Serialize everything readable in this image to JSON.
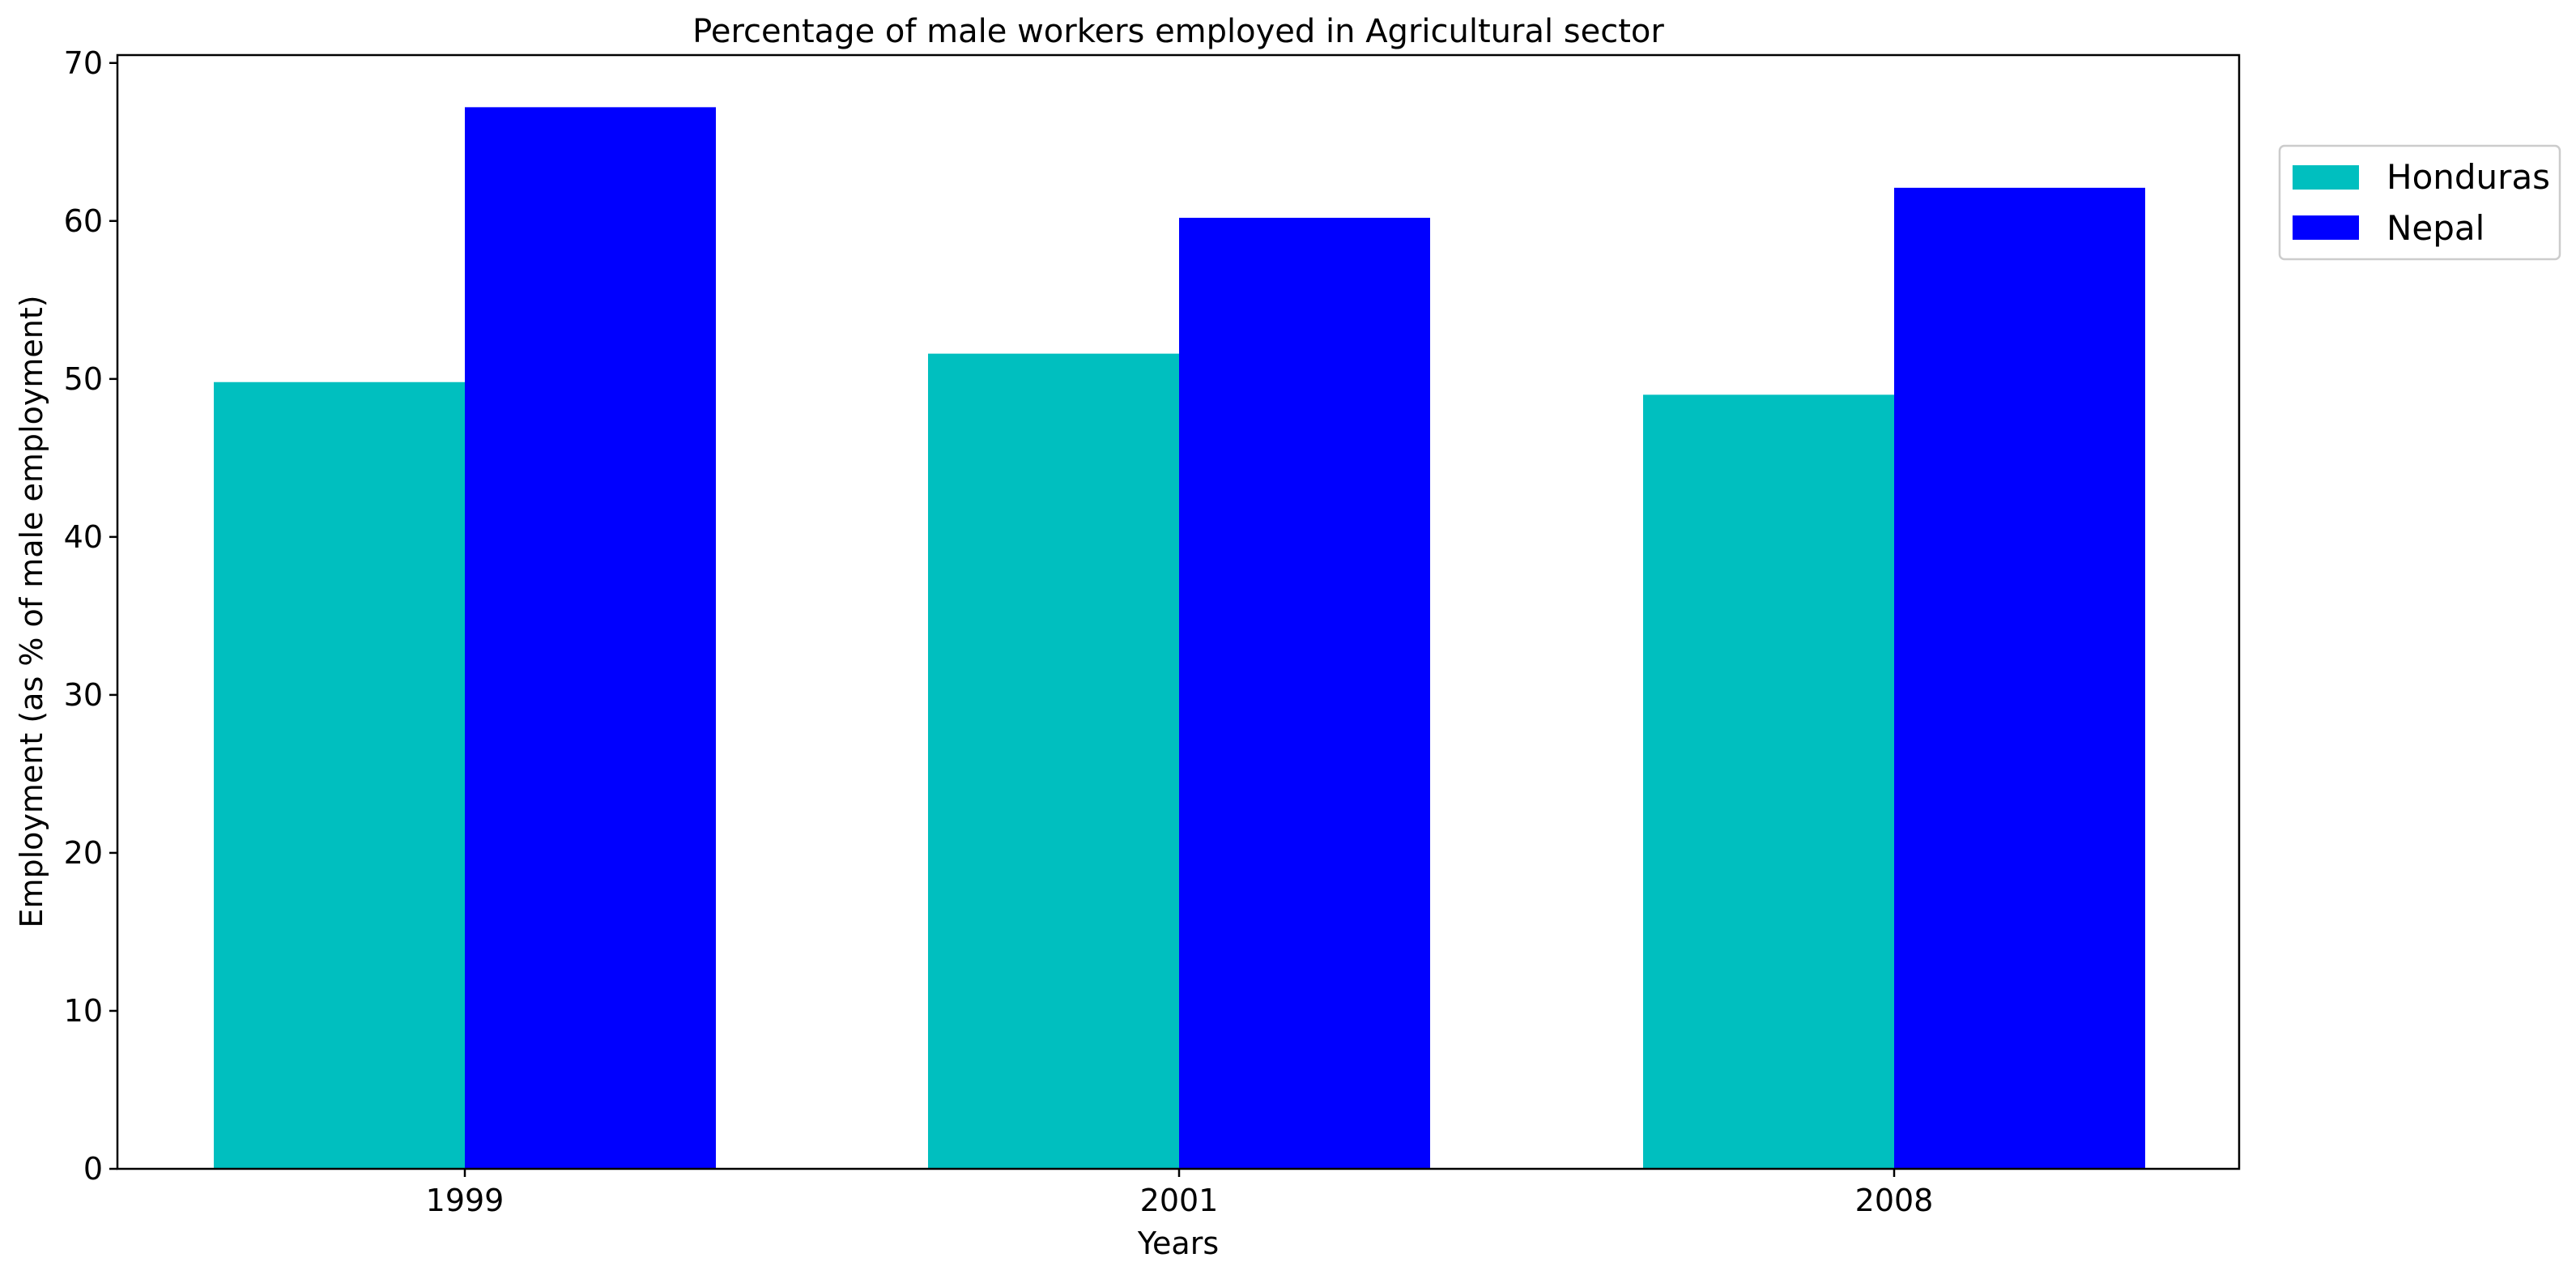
{
  "chart_data": {
    "type": "bar",
    "title": "Percentage of male workers employed in Agricultural sector",
    "xlabel": "Years",
    "ylabel": "Employment (as % of male employment)",
    "categories": [
      "1999",
      "2001",
      "2008"
    ],
    "series": [
      {
        "name": "Honduras",
        "color": "#00bfbf",
        "values": [
          49.8,
          51.6,
          49.0
        ]
      },
      {
        "name": "Nepal",
        "color": "#0000ff",
        "values": [
          67.2,
          60.2,
          62.1
        ]
      }
    ],
    "ylim": [
      0,
      70.5
    ],
    "yticks": [
      0,
      10,
      20,
      30,
      40,
      50,
      60,
      70
    ],
    "grid": false,
    "legend_position": "outside-top-right"
  }
}
